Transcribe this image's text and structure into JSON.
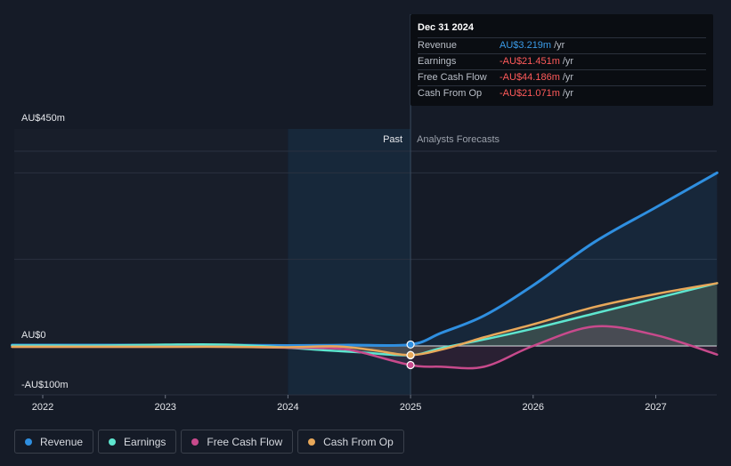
{
  "tooltip": {
    "date": "Dec 31 2024",
    "rows": [
      {
        "label": "Revenue",
        "value": "AU$3.219m",
        "unit": "/yr",
        "color": "#3b9be8"
      },
      {
        "label": "Earnings",
        "value": "-AU$21.451m",
        "unit": "/yr",
        "color": "#ff5a5a"
      },
      {
        "label": "Free Cash Flow",
        "value": "-AU$44.186m",
        "unit": "/yr",
        "color": "#ff5a5a"
      },
      {
        "label": "Cash From Op",
        "value": "-AU$21.071m",
        "unit": "/yr",
        "color": "#ff5a5a"
      }
    ]
  },
  "labels": {
    "past": "Past",
    "forecast": "Analysts Forecasts"
  },
  "legend": [
    {
      "label": "Revenue",
      "color": "#2f8fe0"
    },
    {
      "label": "Earnings",
      "color": "#5ee6cf"
    },
    {
      "label": "Free Cash Flow",
      "color": "#c84a8c"
    },
    {
      "label": "Cash From Op",
      "color": "#e8a85a"
    }
  ],
  "chart_data": {
    "type": "line",
    "y_tick_labels": [
      "AU$450m",
      "AU$0",
      "-AU$100m"
    ],
    "y_ticks": [
      450,
      0,
      -100
    ],
    "ylim": [
      -100,
      450
    ],
    "x_tick_labels": [
      "2022",
      "2023",
      "2024",
      "2025",
      "2026",
      "2027"
    ],
    "x_ticks": [
      2022,
      2023,
      2024,
      2025,
      2026,
      2027
    ],
    "xlim": [
      2021.75,
      2027.5
    ],
    "past_start": 2024,
    "divider": 2025,
    "series": [
      {
        "name": "Revenue",
        "color": "#2f8fe0",
        "x": [
          2021.75,
          2022,
          2022.5,
          2023,
          2023.5,
          2024,
          2024.5,
          2025,
          2025.25,
          2025.6,
          2026,
          2026.5,
          2027,
          2027.5
        ],
        "y": [
          2,
          2,
          2,
          2,
          2,
          1,
          2,
          3.219,
          30,
          70,
          140,
          240,
          320,
          400
        ]
      },
      {
        "name": "Earnings",
        "color": "#5ee6cf",
        "x": [
          2021.75,
          2022,
          2022.5,
          2023,
          2023.5,
          2024,
          2024.3,
          2024.6,
          2025,
          2025.25,
          2025.6,
          2026,
          2026.5,
          2027,
          2027.5
        ],
        "y": [
          1,
          1,
          1,
          3,
          3,
          -4,
          -10,
          -15,
          -21.451,
          -5,
          15,
          40,
          75,
          110,
          145
        ]
      },
      {
        "name": "Free Cash Flow",
        "color": "#c84a8c",
        "x": [
          2021.75,
          2022,
          2022.5,
          2023,
          2023.5,
          2024,
          2024.4,
          2024.6,
          2025,
          2025.25,
          2025.6,
          2026,
          2026.5,
          2027,
          2027.5
        ],
        "y": [
          -2,
          -2,
          -2,
          -2,
          -2,
          -4,
          -6,
          -15,
          -44.186,
          -48,
          -48,
          0,
          45,
          25,
          -20
        ]
      },
      {
        "name": "Cash From Op",
        "color": "#e8a85a",
        "x": [
          2021.75,
          2022,
          2022.5,
          2023,
          2023.5,
          2024,
          2024.4,
          2024.7,
          2025,
          2025.3,
          2025.6,
          2026,
          2026.5,
          2027,
          2027.5
        ],
        "y": [
          -2,
          -2,
          -2,
          -2,
          -2,
          -3,
          -1,
          -10,
          -21.071,
          -5,
          20,
          50,
          90,
          120,
          145
        ]
      }
    ]
  }
}
